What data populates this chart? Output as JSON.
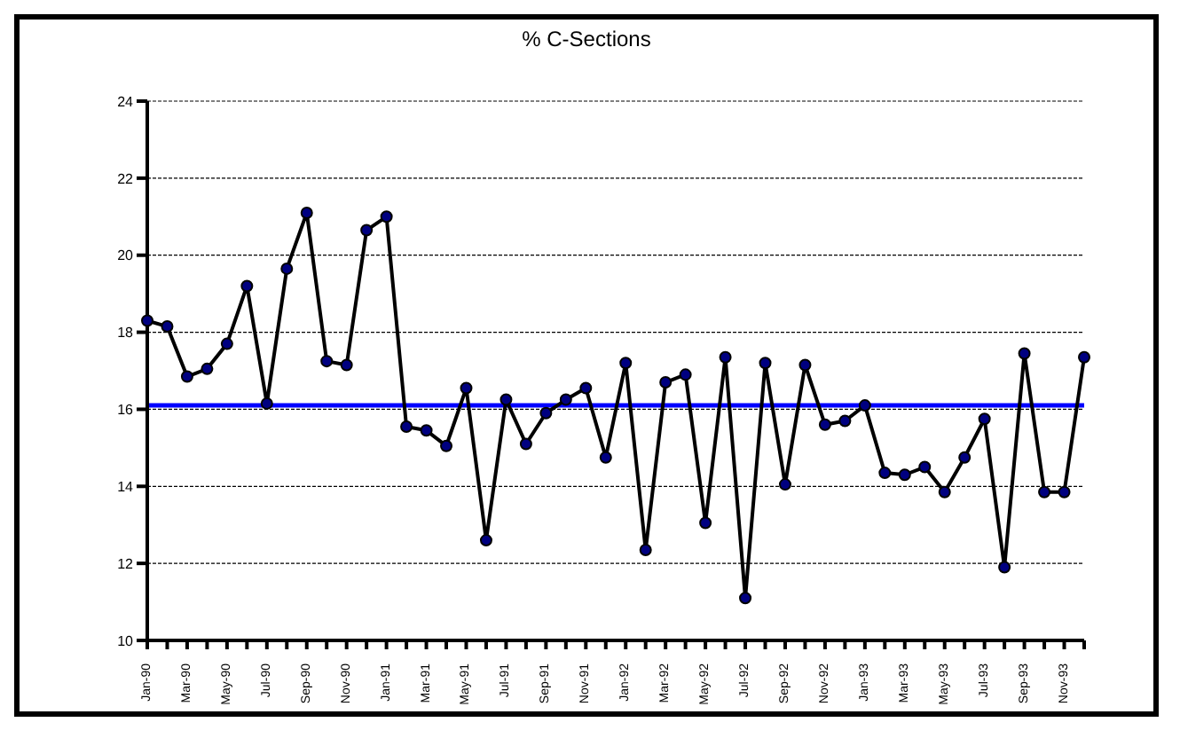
{
  "chart_data": {
    "type": "line",
    "title": "% C-Sections",
    "categories": [
      "Jan-90",
      null,
      "Mar-90",
      null,
      "May-90",
      null,
      "Jul-90",
      null,
      "Sep-90",
      null,
      "Nov-90",
      null,
      "Jan-91",
      null,
      "Mar-91",
      null,
      "May-91",
      null,
      "Jul-91",
      null,
      "Sep-91",
      null,
      "Nov-91",
      null,
      "Jan-92",
      null,
      "Mar-92",
      null,
      "May-92",
      null,
      "Jul-92",
      null,
      "Sep-92",
      null,
      "Nov-92",
      null,
      "Jan-93",
      null,
      "Mar-93",
      null,
      "May-93",
      null,
      "Jul-93",
      null,
      "Sep-93",
      null,
      "Nov-93",
      null
    ],
    "series": [
      {
        "color": "#000000",
        "values": [
          18.3,
          18.15,
          16.85,
          17.05,
          17.7,
          19.2,
          16.15,
          19.65,
          21.1,
          17.25,
          17.15,
          20.65,
          21.0,
          15.55,
          15.45,
          15.05,
          16.55,
          12.6,
          16.25,
          15.1,
          15.9,
          16.25,
          16.55,
          14.75,
          17.2,
          12.35,
          16.7,
          16.9,
          13.05,
          17.35,
          11.1,
          17.2,
          14.05,
          17.15,
          15.6,
          15.7,
          16.1,
          14.35,
          14.3,
          14.5,
          13.85,
          14.75,
          15.75,
          11.9,
          17.45,
          13.85,
          13.85,
          17.35
        ]
      }
    ],
    "ylim": [
      10,
      24
    ],
    "yticks": [
      10,
      12,
      14,
      16,
      18,
      20,
      22,
      24
    ],
    "grid": "y",
    "marker": "circle",
    "line_style": "solid",
    "ref_lines": [
      {
        "axis": "y",
        "value": 16.1,
        "color": "#0000ff"
      }
    ]
  }
}
